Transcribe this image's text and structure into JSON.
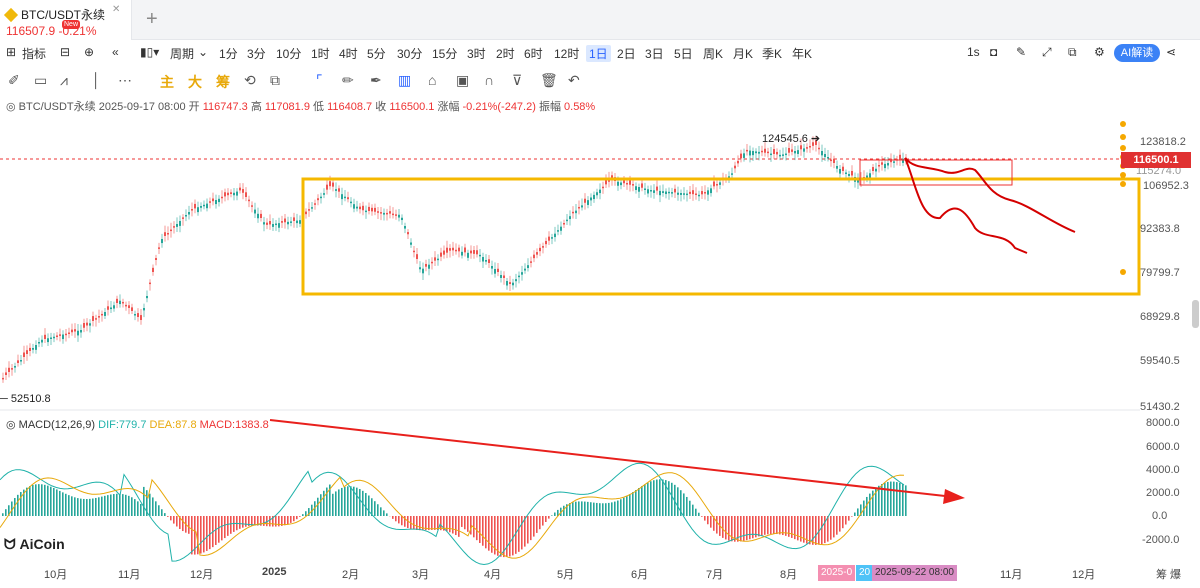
{
  "tab": {
    "symbol": "BTC/USDT永续",
    "price_line": "116507.9  -0.21%",
    "badge": "New"
  },
  "toolbar": {
    "indicators": "指标",
    "period": "周期",
    "intervals": [
      "1分",
      "3分",
      "10分",
      "1时",
      "4时",
      "5分",
      "30分",
      "15分",
      "3时",
      "2时",
      "6时",
      "12时",
      "1日",
      "2日",
      "3日",
      "5日",
      "周K",
      "月K",
      "季K",
      "年K"
    ],
    "active_interval": "1日",
    "speed": "1s",
    "ai": "AI解读"
  },
  "drawbar": {
    "main": "主",
    "big": "大",
    "chip": "筹"
  },
  "info": {
    "symbol": "BTC/USDT永续",
    "datetime": "2025-09-17 08:00",
    "open_label": "开",
    "open": "116747.3",
    "high_label": "高",
    "high": "117081.9",
    "low_label": "低",
    "low": "116408.7",
    "close_label": "收",
    "close": "116500.1",
    "change_label": "涨幅",
    "change": "-0.21%(-247.2)",
    "amp_label": "振幅",
    "amp": "0.58%"
  },
  "macd": {
    "label": "MACD(12,26,9)",
    "dif": "DIF:779.7",
    "dea": "DEA:87.8",
    "macd": "MACD:1383.8"
  },
  "price_axis": [
    "123818.2",
    "106952.3",
    "92383.8",
    "79799.7",
    "68929.8",
    "59540.5",
    "51430.2"
  ],
  "macd_axis": [
    "8000.0",
    "6000.0",
    "4000.0",
    "2000.0",
    "0.0",
    "-2000.0"
  ],
  "current_price": "116500.1",
  "current_price_partial": "115274.0",
  "peak_label": "124545.6 ➔",
  "low_label": "─ 52510.8",
  "x_axis": [
    "10月",
    "11月",
    "12月",
    "2025",
    "2月",
    "3月",
    "4月",
    "5月",
    "6月",
    "7月",
    "8月",
    "11月",
    "12月"
  ],
  "x_right": "筹 爆",
  "date_tags": [
    "2025-0",
    "20",
    "2025-09-22 08:00"
  ],
  "logo": "AiCoin",
  "colors": {
    "up": "#26a69a",
    "down": "#ef5350",
    "box": "#f5b800",
    "projection": "#d40000",
    "accent": "#2962ff"
  }
}
